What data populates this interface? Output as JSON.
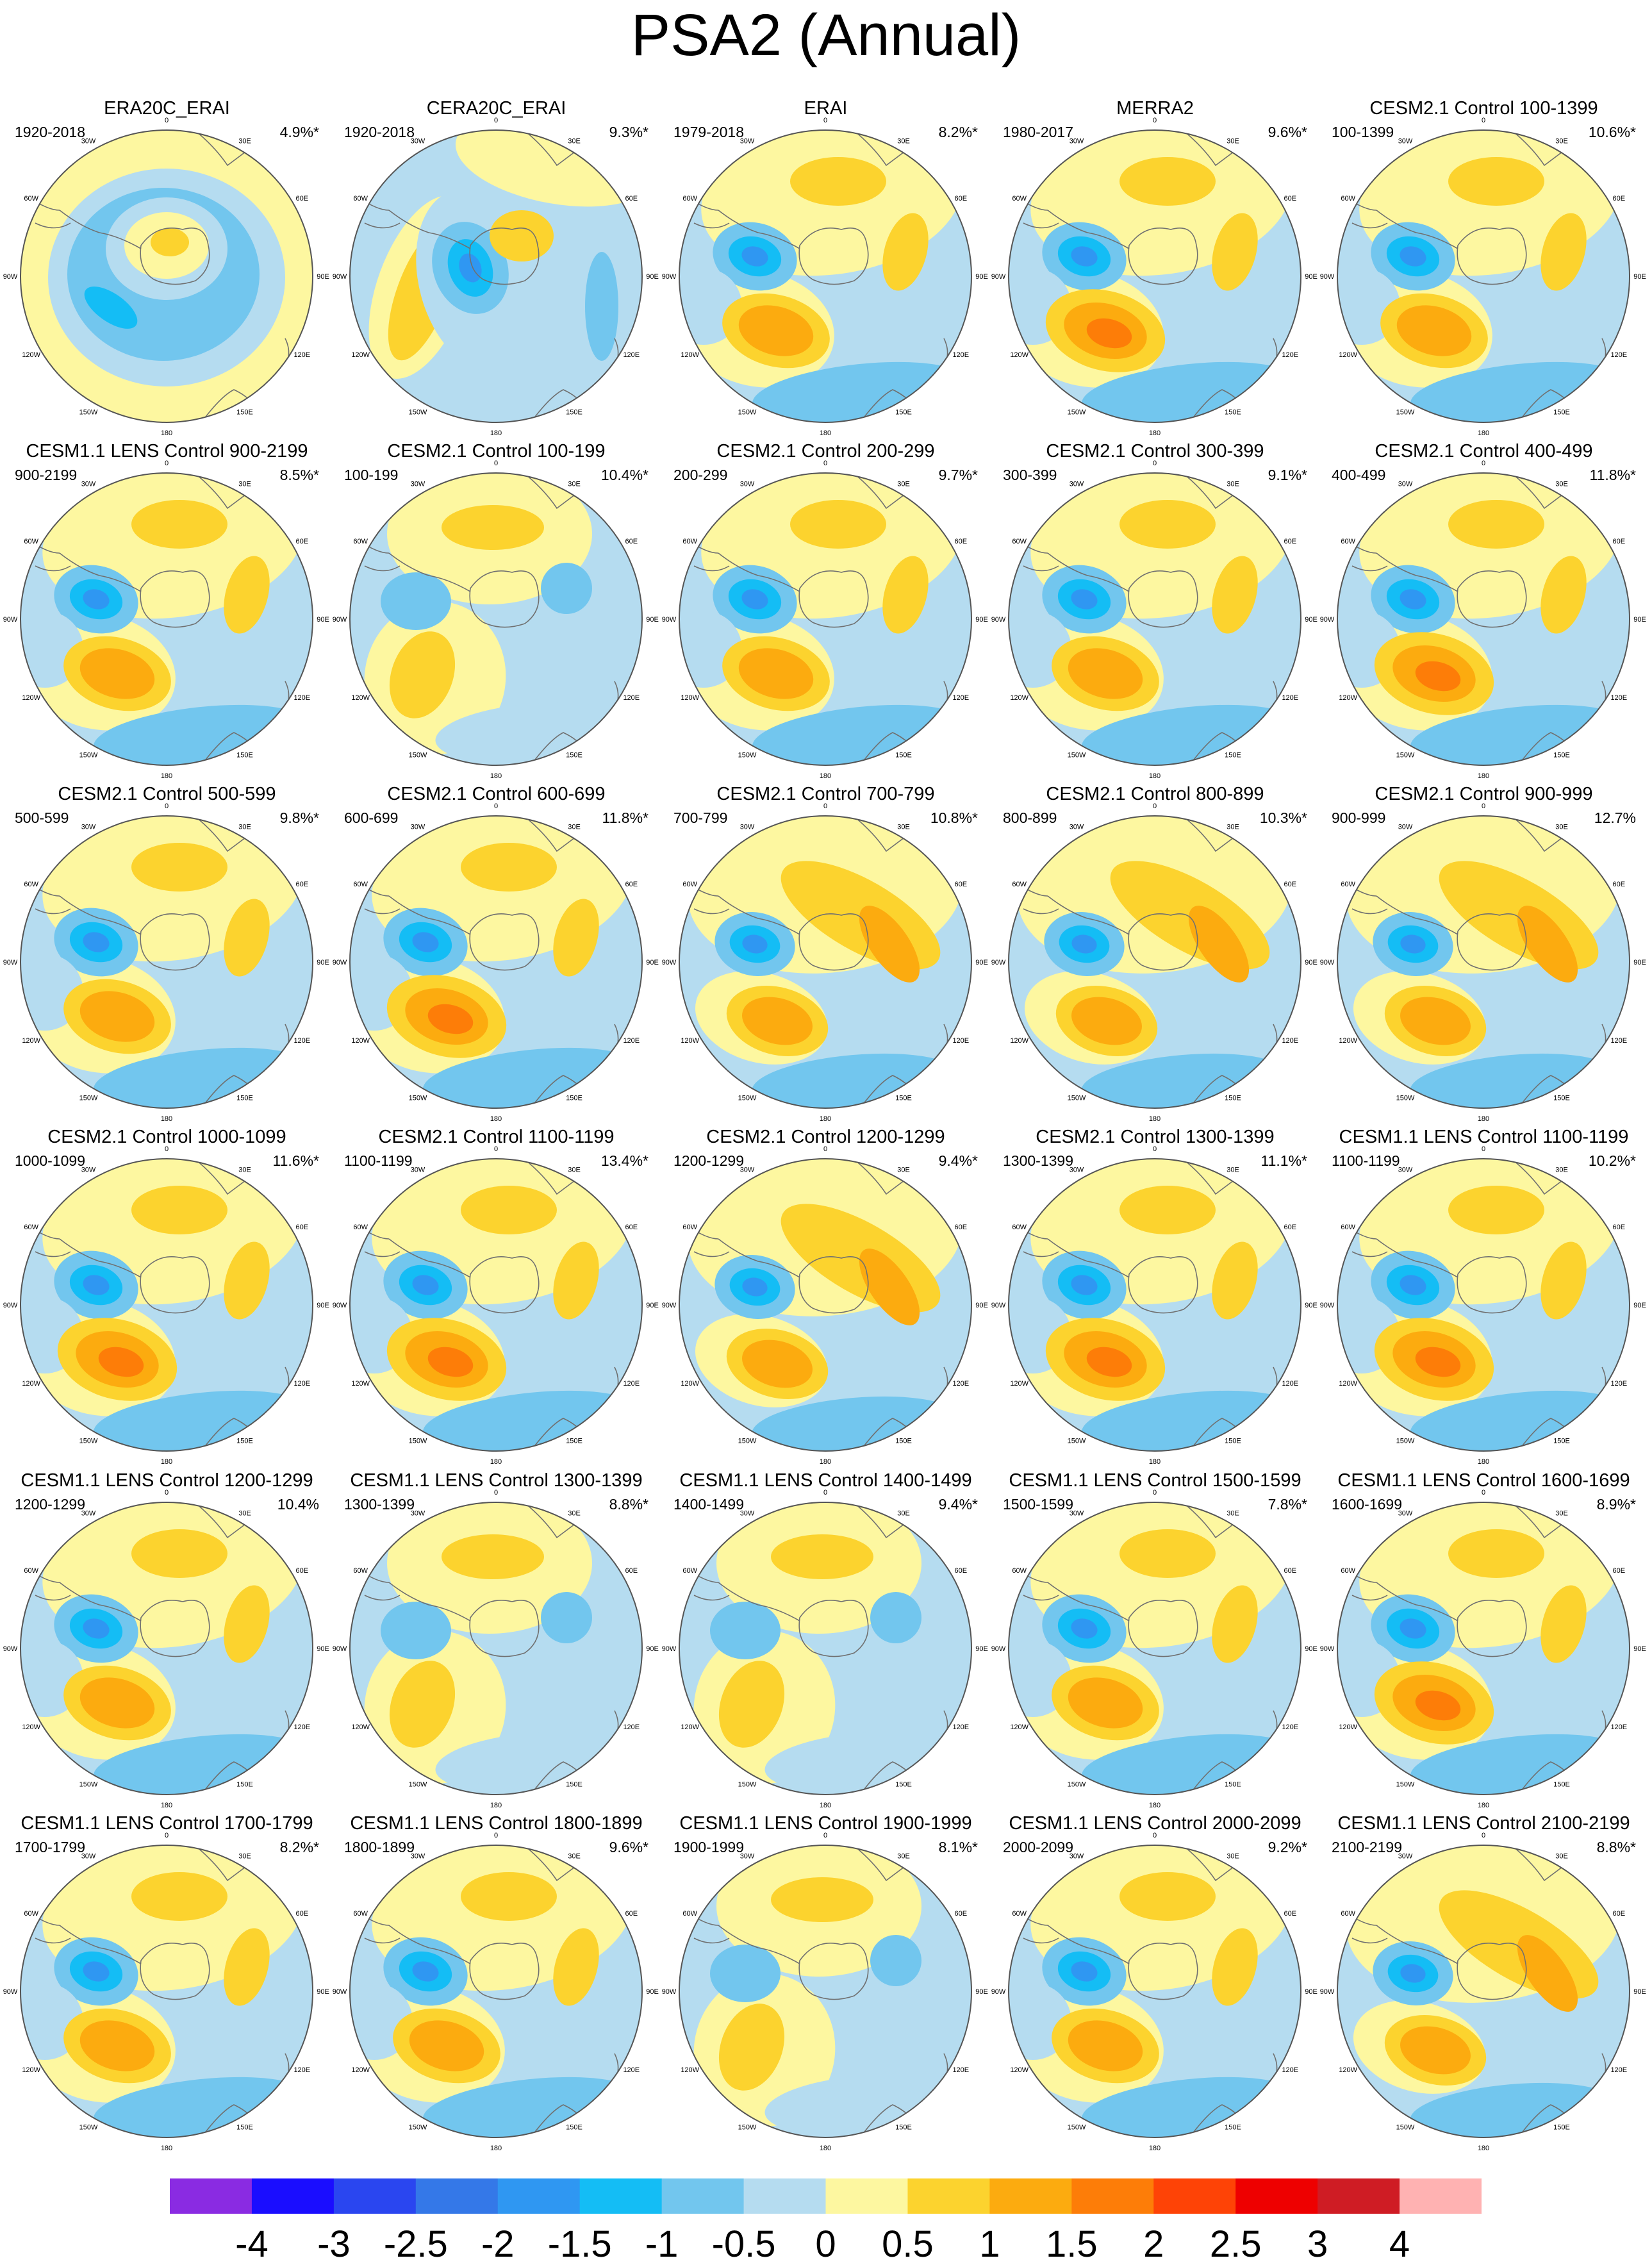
{
  "title": "PSA2 (Annual)",
  "longitude_labels": [
    "0",
    "30E",
    "60E",
    "90E",
    "120E",
    "150E",
    "180",
    "150W",
    "120W",
    "90W",
    "60W",
    "30W"
  ],
  "colors": {
    "levels": [
      "#8a2be2",
      "#1a0dff",
      "#2a46f0",
      "#3478e8",
      "#2f97f2",
      "#14bdf5",
      "#72c6ee",
      "#b5dcf0",
      "#fdf7a0",
      "#fcd32e",
      "#fcab0f",
      "#fd7d08",
      "#fe4306",
      "#ee0000",
      "#cf1c24",
      "#ffb2b2"
    ],
    "coast": "#707070",
    "frame": "#555555"
  },
  "colorbar": {
    "labels": [
      "-4",
      "-3",
      "-2.5",
      "-2",
      "-1.5",
      "-1",
      "-0.5",
      "0",
      "0.5",
      "1",
      "1.5",
      "2",
      "2.5",
      "3",
      "4"
    ]
  },
  "panels": [
    {
      "title": "ERA20C_ERAI",
      "years": "1920-2018",
      "pct": "4.9%*",
      "pattern": "ring"
    },
    {
      "title": "CERA20C_ERAI",
      "years": "1920-2018",
      "pct": "9.3%*",
      "pattern": "cera"
    },
    {
      "title": "ERAI",
      "years": "1979-2018",
      "pct": "8.2%*",
      "pattern": "std"
    },
    {
      "title": "MERRA2",
      "years": "1980-2017",
      "pct": "9.6%*",
      "pattern": "std_strong"
    },
    {
      "title": "CESM2.1 Control 100-1399",
      "years": "100-1399",
      "pct": "10.6%*",
      "pattern": "std"
    },
    {
      "title": "CESM1.1 LENS Control 900-2199",
      "years": "900-2199",
      "pct": "8.5%*",
      "pattern": "std"
    },
    {
      "title": "CESM2.1 Control 100-199",
      "years": "100-199",
      "pct": "10.4%*",
      "pattern": "weak"
    },
    {
      "title": "CESM2.1 Control 200-299",
      "years": "200-299",
      "pct": "9.7%*",
      "pattern": "std"
    },
    {
      "title": "CESM2.1 Control 300-399",
      "years": "300-399",
      "pct": "9.1%*",
      "pattern": "std"
    },
    {
      "title": "CESM2.1 Control 400-499",
      "years": "400-499",
      "pct": "11.8%*",
      "pattern": "std_strong"
    },
    {
      "title": "CESM2.1 Control 500-599",
      "years": "500-599",
      "pct": "9.8%*",
      "pattern": "std"
    },
    {
      "title": "CESM2.1 Control 600-699",
      "years": "600-699",
      "pct": "11.8%*",
      "pattern": "std_strong"
    },
    {
      "title": "CESM2.1 Control 700-799",
      "years": "700-799",
      "pct": "10.8%*",
      "pattern": "arc"
    },
    {
      "title": "CESM2.1 Control 800-899",
      "years": "800-899",
      "pct": "10.3%*",
      "pattern": "arc"
    },
    {
      "title": "CESM2.1 Control 900-999",
      "years": "900-999",
      "pct": "12.7%",
      "pattern": "arc"
    },
    {
      "title": "CESM2.1 Control 1000-1099",
      "years": "1000-1099",
      "pct": "11.6%*",
      "pattern": "std_strong"
    },
    {
      "title": "CESM2.1 Control 1100-1199",
      "years": "1100-1199",
      "pct": "13.4%*",
      "pattern": "std_strong"
    },
    {
      "title": "CESM2.1 Control 1200-1299",
      "years": "1200-1299",
      "pct": "9.4%*",
      "pattern": "arc"
    },
    {
      "title": "CESM2.1 Control 1300-1399",
      "years": "1300-1399",
      "pct": "11.1%*",
      "pattern": "std_strong"
    },
    {
      "title": "CESM1.1 LENS Control 1100-1199",
      "years": "1100-1199",
      "pct": "10.2%*",
      "pattern": "std_strong"
    },
    {
      "title": "CESM1.1 LENS Control 1200-1299",
      "years": "1200-1299",
      "pct": "10.4%",
      "pattern": "std"
    },
    {
      "title": "CESM1.1 LENS Control 1300-1399",
      "years": "1300-1399",
      "pct": "8.8%*",
      "pattern": "weak"
    },
    {
      "title": "CESM1.1 LENS Control 1400-1499",
      "years": "1400-1499",
      "pct": "9.4%*",
      "pattern": "weak"
    },
    {
      "title": "CESM1.1 LENS Control 1500-1599",
      "years": "1500-1599",
      "pct": "7.8%*",
      "pattern": "std"
    },
    {
      "title": "CESM1.1 LENS Control 1600-1699",
      "years": "1600-1699",
      "pct": "8.9%*",
      "pattern": "std_strong"
    },
    {
      "title": "CESM1.1 LENS Control 1700-1799",
      "years": "1700-1799",
      "pct": "8.2%*",
      "pattern": "std"
    },
    {
      "title": "CESM1.1 LENS Control 1800-1899",
      "years": "1800-1899",
      "pct": "9.6%*",
      "pattern": "std"
    },
    {
      "title": "CESM1.1 LENS Control 1900-1999",
      "years": "1900-1999",
      "pct": "8.1%*",
      "pattern": "weak"
    },
    {
      "title": "CESM1.1 LENS Control 2000-2099",
      "years": "2000-2099",
      "pct": "9.2%*",
      "pattern": "std"
    },
    {
      "title": "CESM1.1 LENS Control 2100-2199",
      "years": "2100-2199",
      "pct": "8.8%*",
      "pattern": "arc"
    }
  ]
}
